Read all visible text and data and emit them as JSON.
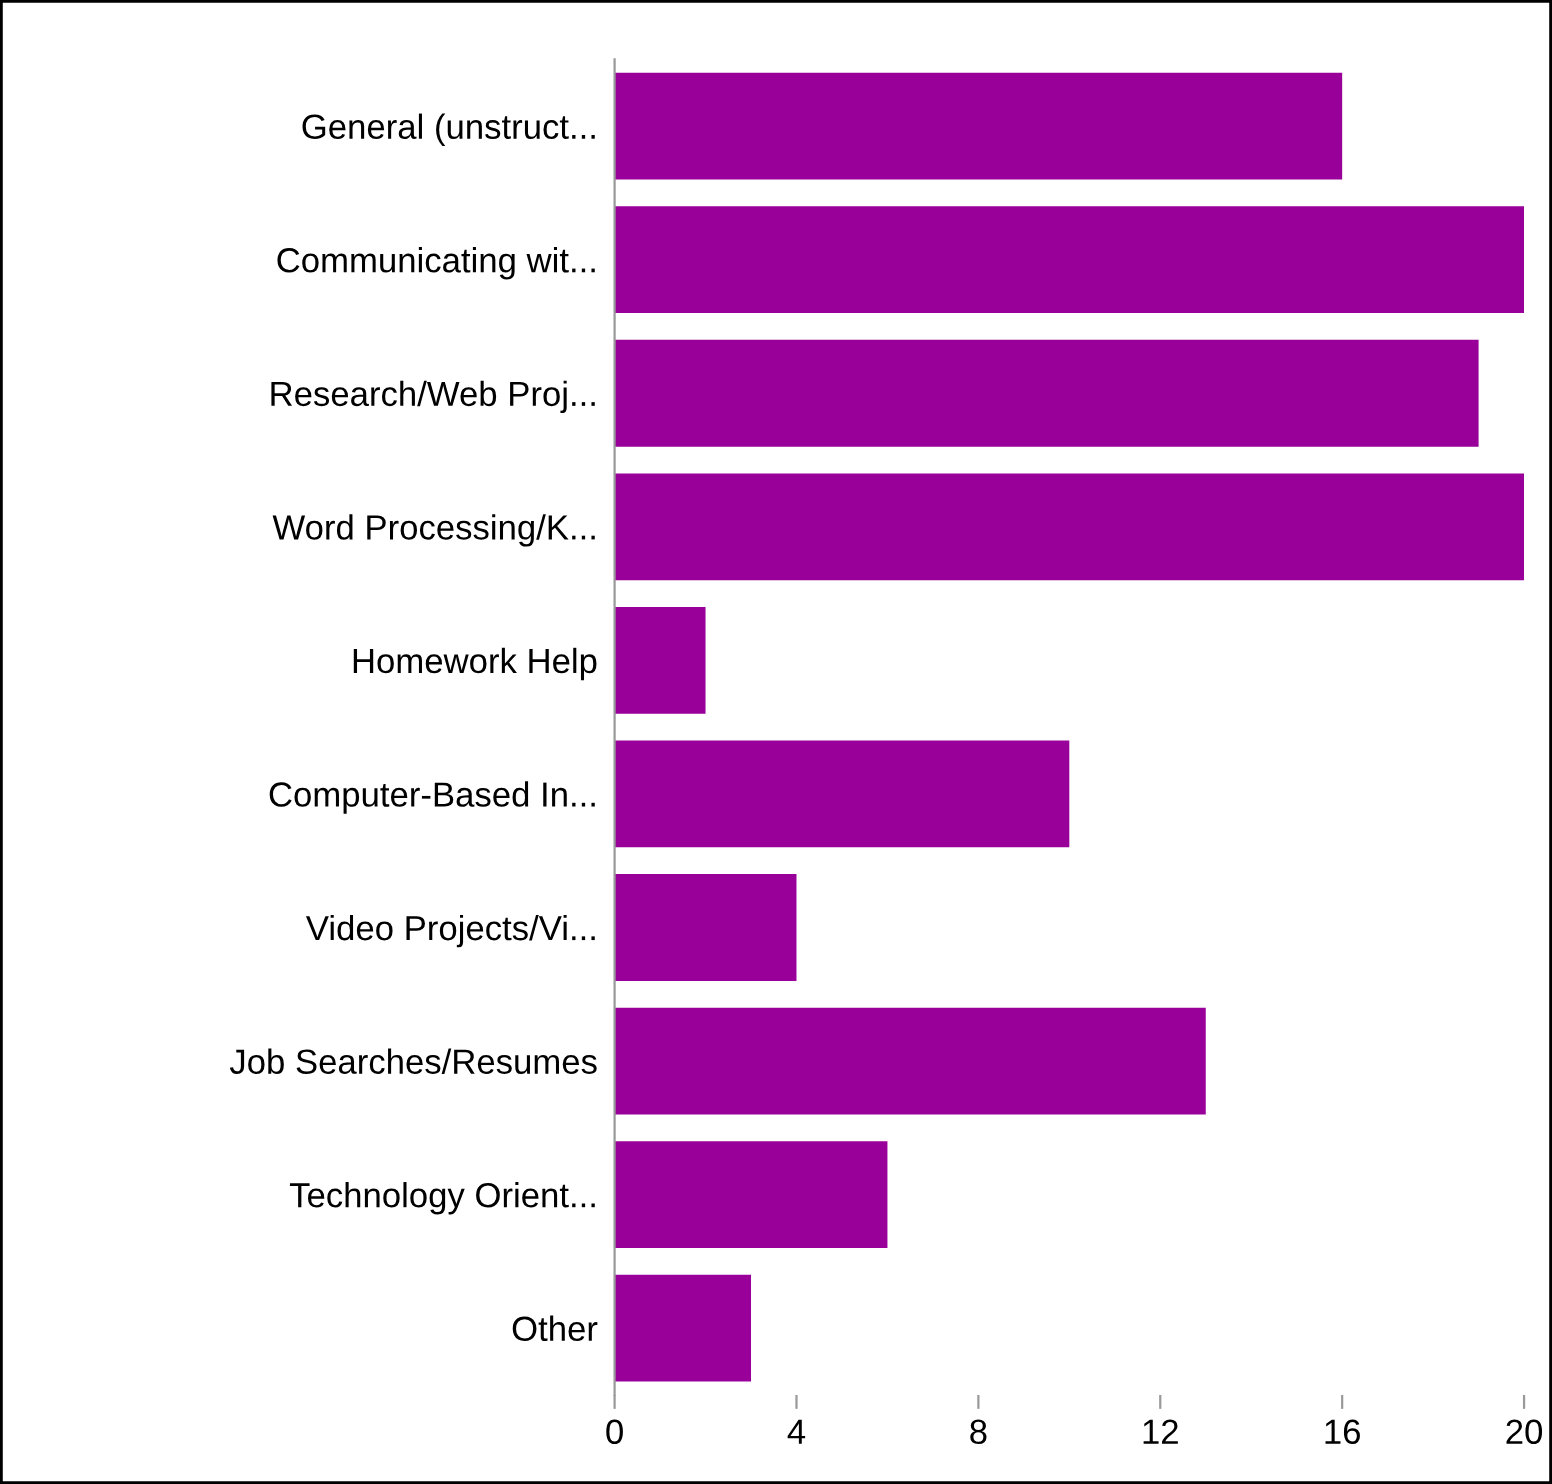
{
  "chart_data": {
    "type": "bar",
    "orientation": "horizontal",
    "categories": [
      "General (unstruct...",
      "Communicating wit...",
      "Research/Web Proj...",
      "Word Processing/K...",
      "Homework Help",
      "Computer-Based In...",
      "Video Projects/Vi...",
      "Job Searches/Resumes",
      "Technology Orient...",
      "Other"
    ],
    "values": [
      16,
      20,
      19,
      20,
      2,
      10,
      4,
      13,
      6,
      3
    ],
    "color": "#990099",
    "xlim": [
      0,
      20
    ],
    "xticks": [
      0,
      4,
      8,
      12,
      16,
      20
    ],
    "grid": false,
    "legend": false
  }
}
